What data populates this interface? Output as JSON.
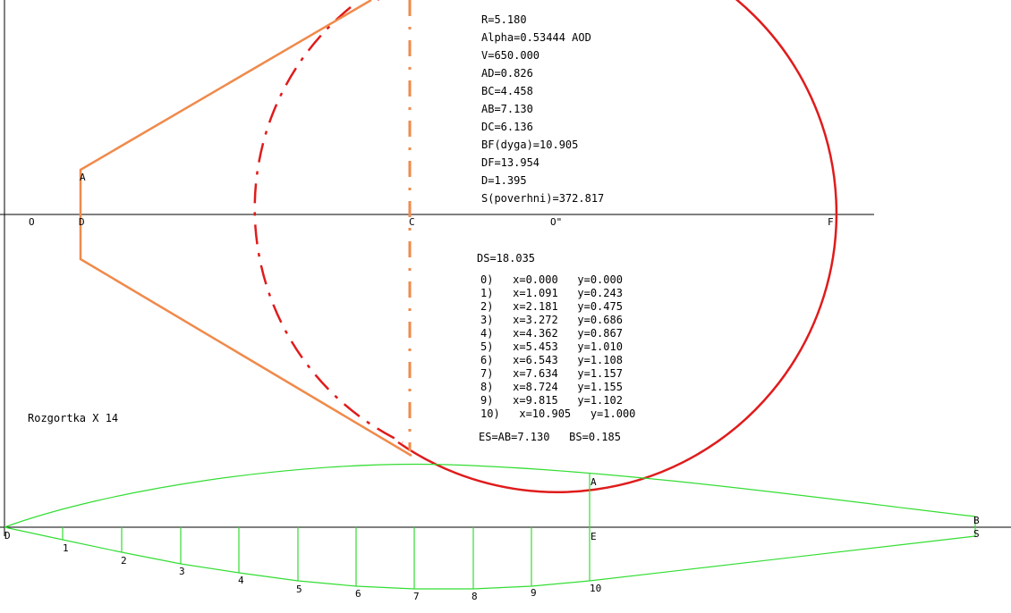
{
  "colors": {
    "axis": "#000000",
    "profile": "#f08a4b",
    "circle": "#e01b1b",
    "development": "#33dd33",
    "text": "#000000"
  },
  "params": [
    "R=5.180",
    "Alpha=0.53444 AOD",
    "V=650.000",
    "AD=0.826",
    "BC=4.458",
    "AB=7.130",
    "DC=6.136",
    "BF(dyga)=10.905",
    "DF=13.954",
    "D=1.395",
    "S(poverhni)=372.817"
  ],
  "ds": "DS=18.035",
  "coords": [
    "0)   x=0.000   y=0.000",
    "1)   x=1.091   y=0.243",
    "2)   x=2.181   y=0.475",
    "3)   x=3.272   y=0.686",
    "4)   x=4.362   y=0.867",
    "5)   x=5.453   y=1.010",
    "6)   x=6.543   y=1.108",
    "7)   x=7.634   y=1.157",
    "8)   x=8.724   y=1.155",
    "9)   x=9.815   y=1.102",
    "10)   x=10.905   y=1.000"
  ],
  "summary": "ES=AB=7.130   BS=0.185",
  "caption": "Rozgortka X 14",
  "labels": {
    "O": "O",
    "D": "D",
    "A": "A",
    "C": "C",
    "O2": "O\"",
    "F": "F",
    "A2": "A",
    "E": "E",
    "D2": "D",
    "B": "B",
    "S": "S"
  },
  "tick_labels": [
    "1",
    "2",
    "3",
    "4",
    "5",
    "6",
    "7",
    "8",
    "9",
    "10"
  ]
}
